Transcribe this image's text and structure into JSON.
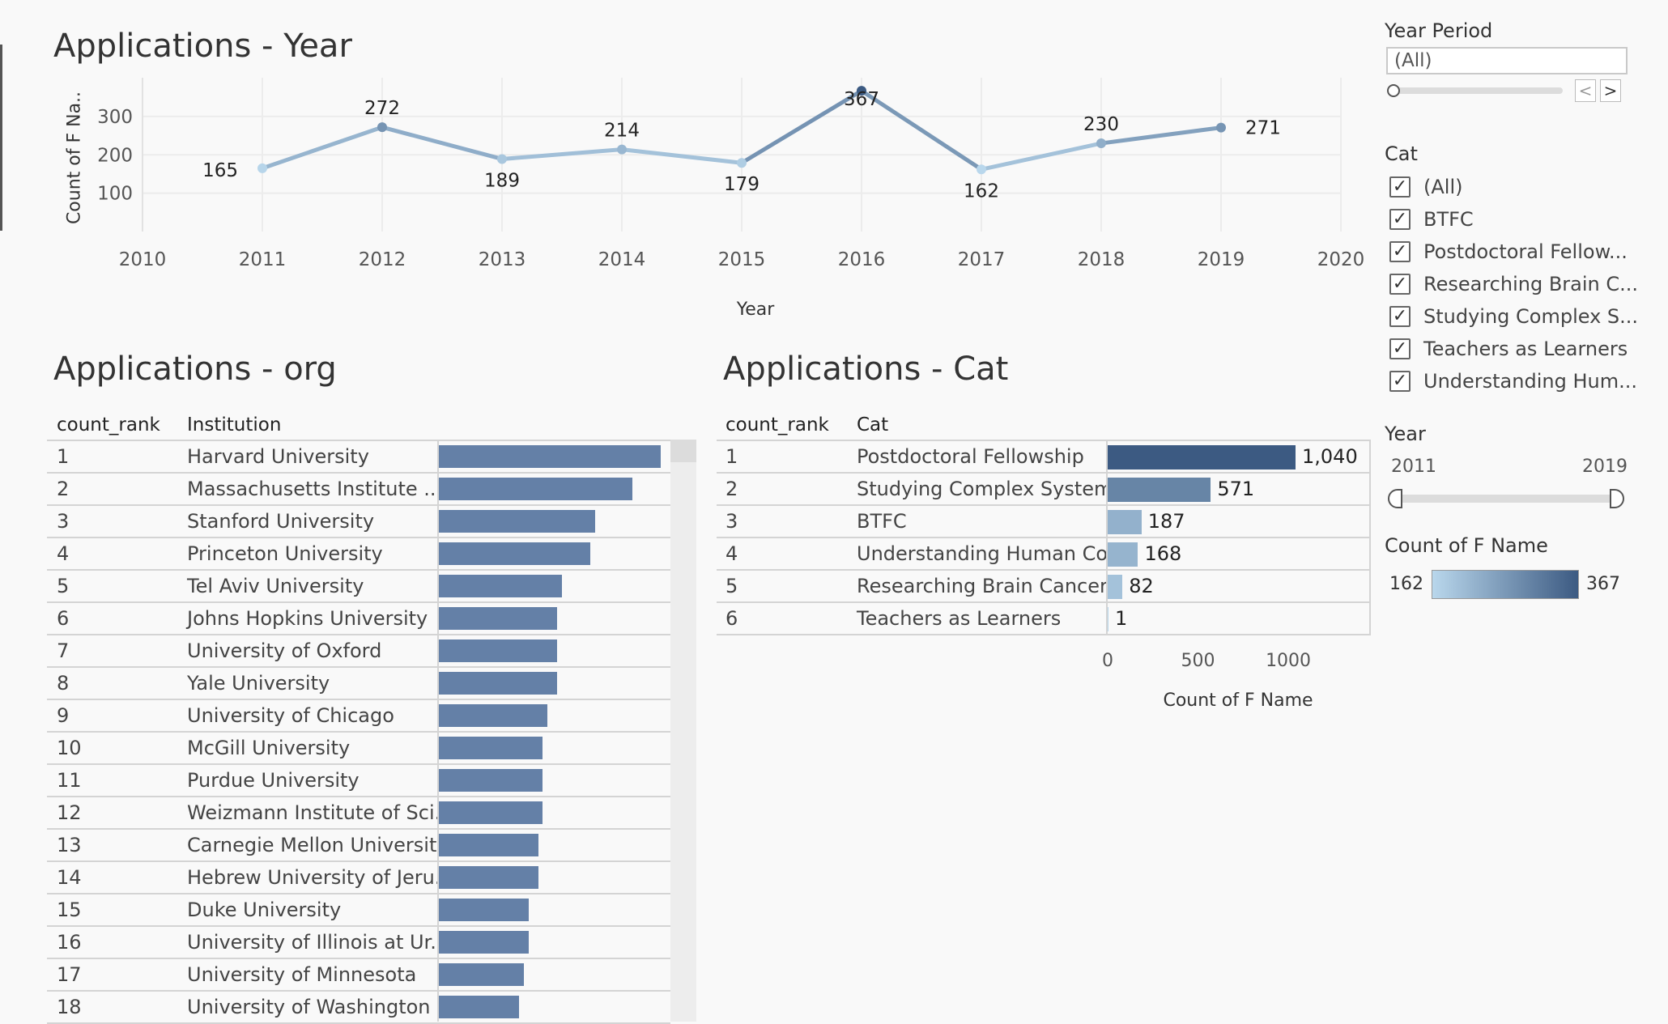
{
  "year_chart": {
    "title": "Applications - Year",
    "ylabel": "Count of F Na..",
    "xlabel": "Year"
  },
  "org_chart": {
    "title": "Applications - org",
    "col_rank": "count_rank",
    "col_name": "Institution"
  },
  "cat_chart": {
    "title": "Applications - Cat",
    "col_rank": "count_rank",
    "col_name": "Cat",
    "xlabel": "Count of F Name"
  },
  "chart_data": [
    {
      "type": "line",
      "title": "Applications - Year",
      "xlabel": "Year",
      "ylabel": "Count of F Na..",
      "xlim": [
        2010,
        2020
      ],
      "ylim": [
        0,
        380
      ],
      "x_ticks": [
        "2010",
        "2011",
        "2012",
        "2013",
        "2014",
        "2015",
        "2016",
        "2017",
        "2018",
        "2019",
        "2020"
      ],
      "y_ticks": [
        "100",
        "200",
        "300"
      ],
      "x": [
        2011,
        2012,
        2013,
        2014,
        2015,
        2016,
        2017,
        2018,
        2019
      ],
      "values": [
        165,
        272,
        189,
        214,
        179,
        367,
        162,
        230,
        271
      ],
      "labels": [
        "165",
        "272",
        "189",
        "214",
        "179",
        "367",
        "162",
        "230",
        "271"
      ]
    },
    {
      "type": "bar",
      "title": "Applications - org",
      "orientation": "horizontal",
      "ranks": [
        "1",
        "2",
        "3",
        "4",
        "5",
        "6",
        "7",
        "8",
        "9",
        "10",
        "11",
        "12",
        "13",
        "14",
        "15",
        "16",
        "17",
        "18"
      ],
      "categories": [
        "Harvard University",
        "Massachusetts Institute ..",
        "Stanford University",
        "Princeton University",
        "Tel Aviv University",
        "Johns Hopkins University",
        "University of Oxford",
        "Yale University",
        "University of Chicago",
        "McGill University",
        "Purdue University",
        "Weizmann Institute of Sci..",
        "Carnegie Mellon University",
        "Hebrew University of Jeru..",
        "Duke University",
        "University of Illinois at Ur..",
        "University of Minnesota",
        "University of Washington"
      ],
      "values": [
        47,
        41,
        33,
        32,
        26,
        25,
        25,
        25,
        23,
        22,
        22,
        22,
        21,
        21,
        19,
        19,
        18,
        17
      ],
      "xlim": [
        0,
        48
      ]
    },
    {
      "type": "bar",
      "title": "Applications - Cat",
      "orientation": "horizontal",
      "ranks": [
        "1",
        "2",
        "3",
        "4",
        "5",
        "6"
      ],
      "categories": [
        "Postdoctoral Fellowship",
        "Studying Complex Systems",
        "BTFC",
        "Understanding Human Co..",
        "Researching Brain Cancer",
        "Teachers as Learners"
      ],
      "values": [
        1040,
        571,
        187,
        168,
        82,
        1
      ],
      "labels": [
        "1,040",
        "571",
        "187",
        "168",
        "82",
        "1"
      ],
      "xlabel": "Count of F Name",
      "x_ticks": [
        "0",
        "500",
        "1000"
      ],
      "xlim": [
        0,
        1450
      ]
    }
  ],
  "filters": {
    "year_period": {
      "title": "Year Period",
      "value": "(All)",
      "prev": "<",
      "next": ">"
    },
    "cat": {
      "title": "Cat",
      "items": [
        "(All)",
        "BTFC",
        "Postdoctoral Fellow...",
        "Researching Brain C...",
        "Studying Complex S...",
        "Teachers as Learners",
        "Understanding Hum..."
      ],
      "check": "✓"
    },
    "year": {
      "title": "Year",
      "min": "2011",
      "max": "2019"
    },
    "count_legend": {
      "title": "Count of F Name",
      "min": "162",
      "max": "367",
      "color_low": "#b9d7ec",
      "color_high": "#3c5a82"
    }
  },
  "colors": {
    "bar": "#6480a7",
    "line_low": "#b9d7ec",
    "line_high": "#3c5a82"
  }
}
